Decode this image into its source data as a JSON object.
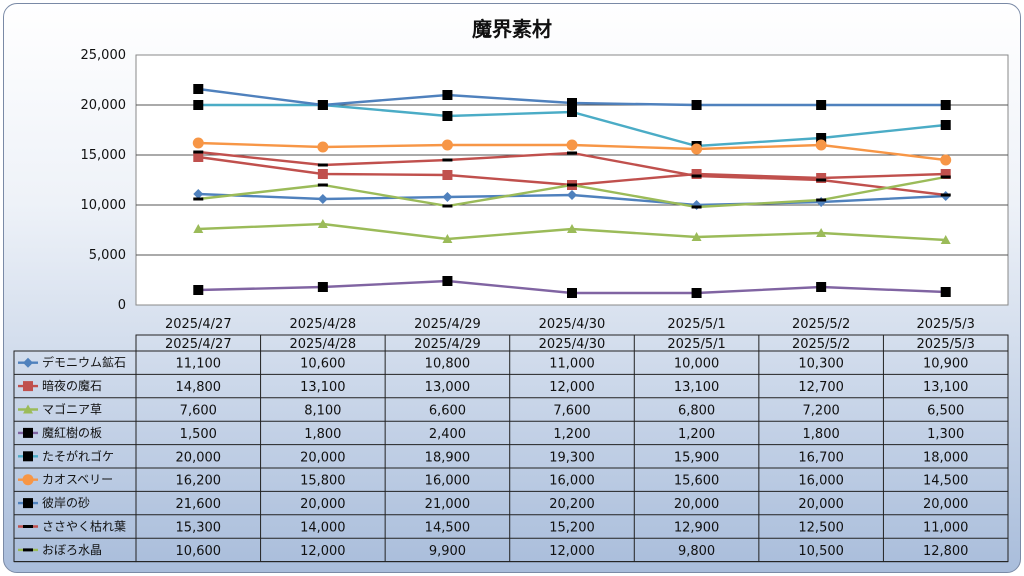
{
  "chart_data": {
    "type": "line",
    "title": "魔界素材",
    "categories": [
      "2025/4/27",
      "2025/4/28",
      "2025/4/29",
      "2025/4/30",
      "2025/5/1",
      "2025/5/2",
      "2025/5/3"
    ],
    "ylim": [
      0,
      25000
    ],
    "yticks": [
      "0",
      "5,000",
      "10,000",
      "15,000",
      "20,000",
      "25,000"
    ],
    "grid": true,
    "legend": "data-table",
    "series": [
      {
        "name": "デモニウム鉱石",
        "color": "#4f81bd",
        "marker": "diamond",
        "values": [
          11100,
          10600,
          10800,
          11000,
          10000,
          10300,
          10900
        ],
        "labels": [
          "11,100",
          "10,600",
          "10,800",
          "11,000",
          "10,000",
          "10,300",
          "10,900"
        ]
      },
      {
        "name": "暗夜の魔石",
        "color": "#c0504d",
        "marker": "square",
        "values": [
          14800,
          13100,
          13000,
          12000,
          13100,
          12700,
          13100
        ],
        "labels": [
          "14,800",
          "13,100",
          "13,000",
          "12,000",
          "13,100",
          "12,700",
          "13,100"
        ]
      },
      {
        "name": "マゴニア草",
        "color": "#9bbb59",
        "marker": "triangle",
        "values": [
          7600,
          8100,
          6600,
          7600,
          6800,
          7200,
          6500
        ],
        "labels": [
          "7,600",
          "8,100",
          "6,600",
          "7,600",
          "6,800",
          "7,200",
          "6,500"
        ]
      },
      {
        "name": "魔紅樹の板",
        "color": "#8064a2",
        "marker": "blacksquare",
        "values": [
          1500,
          1800,
          2400,
          1200,
          1200,
          1800,
          1300
        ],
        "labels": [
          "1,500",
          "1,800",
          "2,400",
          "1,200",
          "1,200",
          "1,800",
          "1,300"
        ]
      },
      {
        "name": "たそがれゴケ",
        "color": "#4bacc6",
        "marker": "blacksquare",
        "values": [
          20000,
          20000,
          18900,
          19300,
          15900,
          16700,
          18000
        ],
        "labels": [
          "20,000",
          "20,000",
          "18,900",
          "19,300",
          "15,900",
          "16,700",
          "18,000"
        ]
      },
      {
        "name": "カオスベリー",
        "color": "#f79646",
        "marker": "circle",
        "values": [
          16200,
          15800,
          16000,
          16000,
          15600,
          16000,
          14500
        ],
        "labels": [
          "16,200",
          "15,800",
          "16,000",
          "16,000",
          "15,600",
          "16,000",
          "14,500"
        ]
      },
      {
        "name": "彼岸の砂",
        "color": "#4f81bd",
        "marker": "blacksquare",
        "values": [
          21600,
          20000,
          21000,
          20200,
          20000,
          20000,
          20000
        ],
        "labels": [
          "21,600",
          "20,000",
          "21,000",
          "20,200",
          "20,000",
          "20,000",
          "20,000"
        ]
      },
      {
        "name": "ささやく枯れ葉",
        "color": "#c0504d",
        "marker": "dash",
        "values": [
          15300,
          14000,
          14500,
          15200,
          12900,
          12500,
          11000
        ],
        "labels": [
          "15,300",
          "14,000",
          "14,500",
          "15,200",
          "12,900",
          "12,500",
          "11,000"
        ]
      },
      {
        "name": "おぼろ水晶",
        "color": "#9bbb59",
        "marker": "dash",
        "values": [
          10600,
          12000,
          9900,
          12000,
          9800,
          10500,
          12800
        ],
        "labels": [
          "10,600",
          "12,000",
          "9,900",
          "12,000",
          "9,800",
          "10,500",
          "12,800"
        ]
      }
    ]
  }
}
